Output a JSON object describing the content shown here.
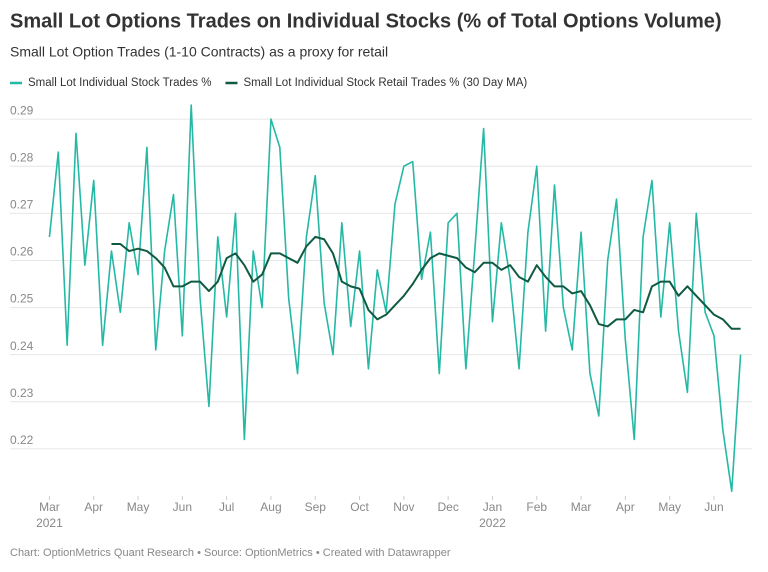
{
  "chart_data": {
    "type": "line",
    "title": "Small Lot Options Trades on Individual Stocks (% of Total Options Volume)",
    "subtitle": "Small Lot Option Trades (1-10 Contracts) as a proxy for retail",
    "footer": "Chart: OptionMetrics Quant Research • Source: OptionMetrics • Created with Datawrapper",
    "x": [
      0,
      0.2,
      0.4,
      0.6,
      0.8,
      1.0,
      1.2,
      1.4,
      1.6,
      1.8,
      2.0,
      2.2,
      2.4,
      2.6,
      2.8,
      3.0,
      3.2,
      3.4,
      3.6,
      3.8,
      4.0,
      4.2,
      4.4,
      4.6,
      4.8,
      5.0,
      5.2,
      5.4,
      5.6,
      5.8,
      6.0,
      6.2,
      6.4,
      6.6,
      6.8,
      7.0,
      7.2,
      7.4,
      7.6,
      7.8,
      8.0,
      8.2,
      8.4,
      8.6,
      8.8,
      9.0,
      9.2,
      9.4,
      9.6,
      9.8,
      10.0,
      10.2,
      10.4,
      10.6,
      10.8,
      11.0,
      11.2,
      11.4,
      11.6,
      11.8,
      12.0,
      12.2,
      12.4,
      12.6,
      12.8,
      13.0,
      13.2,
      13.4,
      13.6,
      13.8,
      14.0,
      14.2,
      14.4,
      14.6,
      14.8,
      15.0,
      15.2,
      15.4,
      15.6
    ],
    "series": [
      {
        "name": "Small Lot Individual Stock Trades %",
        "color": "#25b9a5",
        "width": 1.6,
        "values": [
          0.265,
          0.283,
          0.242,
          0.287,
          0.259,
          0.277,
          0.242,
          0.262,
          0.249,
          0.268,
          0.257,
          0.284,
          0.241,
          0.262,
          0.274,
          0.244,
          0.293,
          0.252,
          0.229,
          0.265,
          0.248,
          0.27,
          0.222,
          0.262,
          0.25,
          0.29,
          0.284,
          0.252,
          0.236,
          0.265,
          0.278,
          0.251,
          0.24,
          0.268,
          0.246,
          0.262,
          0.237,
          0.258,
          0.249,
          0.272,
          0.28,
          0.281,
          0.256,
          0.266,
          0.236,
          0.268,
          0.27,
          0.237,
          0.262,
          0.288,
          0.247,
          0.268,
          0.256,
          0.237,
          0.266,
          0.28,
          0.245,
          0.276,
          0.25,
          0.241,
          0.266,
          0.236,
          0.227,
          0.26,
          0.273,
          0.243,
          0.222,
          0.265,
          0.277,
          0.248,
          0.268,
          0.245,
          0.232,
          0.27,
          0.249,
          0.244,
          0.224,
          0.211,
          0.24
        ]
      },
      {
        "name": "Small Lot Individual Stock Retail Trades % (30 Day MA)",
        "color": "#0f5a40",
        "width": 2,
        "values": [
          null,
          null,
          null,
          null,
          null,
          null,
          null,
          0.2635,
          0.2635,
          0.262,
          0.2625,
          0.262,
          0.2605,
          0.2585,
          0.2545,
          0.2545,
          0.2555,
          0.2555,
          0.2535,
          0.2555,
          0.2605,
          0.2615,
          0.259,
          0.2555,
          0.257,
          0.2615,
          0.2615,
          0.2605,
          0.2595,
          0.263,
          0.265,
          0.2645,
          0.2615,
          0.2555,
          0.2545,
          0.254,
          0.2495,
          0.2475,
          0.2485,
          0.2505,
          0.2525,
          0.255,
          0.258,
          0.2605,
          0.2615,
          0.261,
          0.2605,
          0.2585,
          0.2575,
          0.2595,
          0.2595,
          0.258,
          0.259,
          0.2565,
          0.2555,
          0.259,
          0.2565,
          0.2545,
          0.2545,
          0.253,
          0.2535,
          0.2505,
          0.2465,
          0.246,
          0.2475,
          0.2475,
          0.2495,
          0.249,
          0.2545,
          0.2555,
          0.2555,
          0.2525,
          0.2545,
          0.2525,
          0.2505,
          0.2485,
          0.2475,
          0.2455,
          0.2455
        ]
      }
    ],
    "xlim": [
      -0.1,
      15.7
    ],
    "xticks": [
      {
        "value": 0,
        "label": "Mar"
      },
      {
        "value": 1,
        "label": "Apr"
      },
      {
        "value": 2,
        "label": "May"
      },
      {
        "value": 3,
        "label": "Jun"
      },
      {
        "value": 4,
        "label": "Jul"
      },
      {
        "value": 5,
        "label": "Aug"
      },
      {
        "value": 6,
        "label": "Sep"
      },
      {
        "value": 7,
        "label": "Oct"
      },
      {
        "value": 8,
        "label": "Nov"
      },
      {
        "value": 9,
        "label": "Dec"
      },
      {
        "value": 10,
        "label": "Jan"
      },
      {
        "value": 11,
        "label": "Feb"
      },
      {
        "value": 12,
        "label": "Mar"
      },
      {
        "value": 13,
        "label": "Apr"
      },
      {
        "value": 14,
        "label": "May"
      },
      {
        "value": 15,
        "label": "Jun"
      }
    ],
    "xyears": [
      {
        "value": 0,
        "label": "2021"
      },
      {
        "value": 10,
        "label": "2022"
      }
    ],
    "ylim": [
      0.21,
      0.293
    ],
    "yticks": [
      0.22,
      0.23,
      0.24,
      0.25,
      0.26,
      0.27,
      0.28,
      0.29
    ],
    "grid": true
  }
}
